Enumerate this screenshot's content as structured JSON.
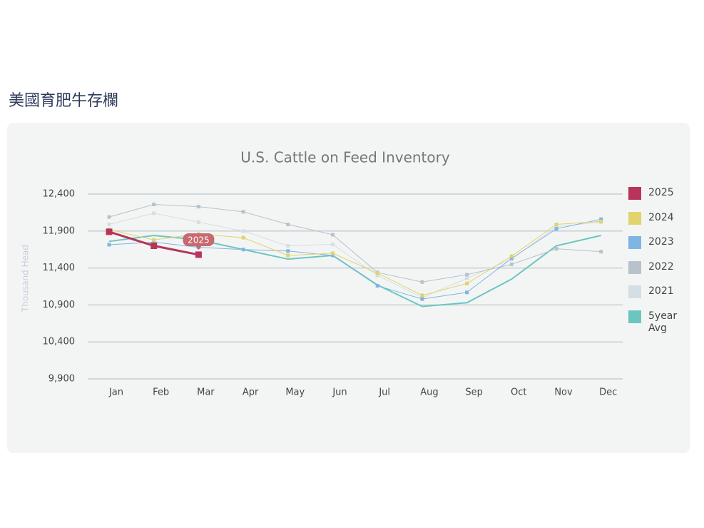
{
  "heading": "美國育肥牛存欄",
  "chart_data": {
    "type": "line",
    "title": "U.S. Cattle on Feed Inventory",
    "y_label": "Thousand Head",
    "categories": [
      "Jan",
      "Feb",
      "Mar",
      "Apr",
      "May",
      "Jun",
      "Jul",
      "Aug",
      "Sep",
      "Oct",
      "Nov",
      "Dec"
    ],
    "ylim": [
      9900,
      12400
    ],
    "yticks": [
      {
        "value": 9900,
        "label": "9,900"
      },
      {
        "value": 10400,
        "label": "10,400"
      },
      {
        "value": 10900,
        "label": "10,900"
      },
      {
        "value": 11400,
        "label": "11,400"
      },
      {
        "value": 11900,
        "label": "11,900"
      },
      {
        "value": 12400,
        "label": "12,400"
      }
    ],
    "grid": true,
    "legend": "right",
    "annotation": "2025",
    "series": [
      {
        "name": "2025",
        "color": "#b8345a",
        "line_width": 3,
        "markers": true,
        "values": [
          11890,
          11700,
          11580,
          null,
          null,
          null,
          null,
          null,
          null,
          null,
          null,
          null
        ]
      },
      {
        "name": "2024",
        "color": "#e2d36c",
        "line_width": 1,
        "markers": true,
        "values": [
          11920,
          11780,
          11860,
          11810,
          11570,
          11600,
          11330,
          11030,
          11190,
          11560,
          11990,
          12030
        ]
      },
      {
        "name": "2023",
        "color": "#7fb5e2",
        "line_width": 1,
        "markers": true,
        "values": [
          11715,
          11750,
          11680,
          11650,
          11630,
          11570,
          11160,
          10980,
          11070,
          11530,
          11930,
          12060
        ]
      },
      {
        "name": "2022",
        "color": "#b7c2cb",
        "line_width": 1,
        "markers": true,
        "values": [
          12090,
          12260,
          12230,
          12160,
          11990,
          11850,
          11340,
          11210,
          11310,
          11450,
          11660,
          11620
        ]
      },
      {
        "name": "2021",
        "color": "#d4dee5",
        "line_width": 1,
        "markers": true,
        "values": [
          11990,
          12140,
          12020,
          11900,
          11700,
          11720,
          11300,
          11000,
          11260,
          11520,
          11960,
          12020
        ]
      },
      {
        "name": "5year Avg",
        "color": "#6cc6bf",
        "line_width": 2,
        "markers": false,
        "values": [
          11760,
          11840,
          11780,
          11650,
          11520,
          11570,
          11170,
          10880,
          10930,
          11250,
          11700,
          11840
        ]
      }
    ]
  }
}
